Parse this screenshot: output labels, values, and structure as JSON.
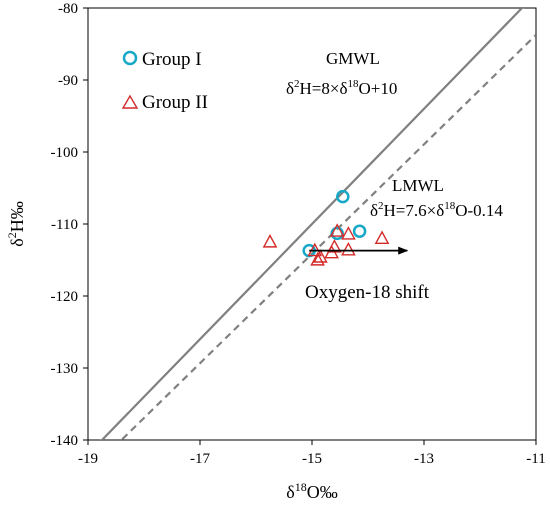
{
  "chart_data": {
    "type": "scatter",
    "xlim": [
      -19,
      -11
    ],
    "ylim": [
      -140,
      -80
    ],
    "x_ticks": [
      "-19",
      "-17",
      "-15",
      "-13",
      "-11"
    ],
    "y_ticks": [
      "-80",
      "-90",
      "-100",
      "-110",
      "-120",
      "-130",
      "-140"
    ],
    "x_tick_values": [
      -19,
      -17,
      -15,
      -13,
      -11
    ],
    "y_tick_values": [
      -80,
      -90,
      -100,
      -110,
      -120,
      -130,
      -140
    ],
    "xlabel": {
      "prefix": "δ",
      "sup": "18",
      "suffix": "O‰"
    },
    "ylabel": {
      "prefix": "δ",
      "sup": "2",
      "suffix": "H‰"
    },
    "grid": false,
    "legend_placement": "top-left",
    "series": [
      {
        "name": "Group I",
        "marker": "circle",
        "color": "#17a8c8",
        "points": [
          [
            -15.05,
            -113.7
          ],
          [
            -14.55,
            -111.3
          ],
          [
            -14.45,
            -106.2
          ],
          [
            -14.15,
            -111.0
          ]
        ]
      },
      {
        "name": "Group II",
        "marker": "triangle",
        "color": "#d42a2a",
        "points": [
          [
            -15.75,
            -112.5
          ],
          [
            -14.95,
            -113.7
          ],
          [
            -14.9,
            -115.0
          ],
          [
            -14.85,
            -114.6
          ],
          [
            -14.65,
            -114.0
          ],
          [
            -14.6,
            -113.2
          ],
          [
            -14.55,
            -111.0
          ],
          [
            -14.35,
            -111.4
          ],
          [
            -14.35,
            -113.6
          ],
          [
            -13.75,
            -112.0
          ]
        ]
      }
    ],
    "lines": [
      {
        "name": "GMWL",
        "style": "solid",
        "color": "#808080",
        "slope": 8,
        "intercept": 10,
        "label_name": "GMWL",
        "label_eq": {
          "a": "δ",
          "b": "2",
          "c": "H=8×δ",
          "d": "18",
          "e": "O+10"
        }
      },
      {
        "name": "LMWL",
        "style": "dashed",
        "color": "#808080",
        "slope": 7.6,
        "intercept": -0.14,
        "label_name": "LMWL",
        "label_eq": {
          "a": "δ",
          "b": "2",
          "c": "H=7.6×δ",
          "d": "18",
          "e": "O-0.14"
        }
      }
    ],
    "arrow": {
      "from": [
        -15.05,
        -113.7
      ],
      "to": [
        -13.3,
        -113.7
      ],
      "color": "#000000"
    },
    "annotation_shift": "Oxygen-18 shift"
  }
}
